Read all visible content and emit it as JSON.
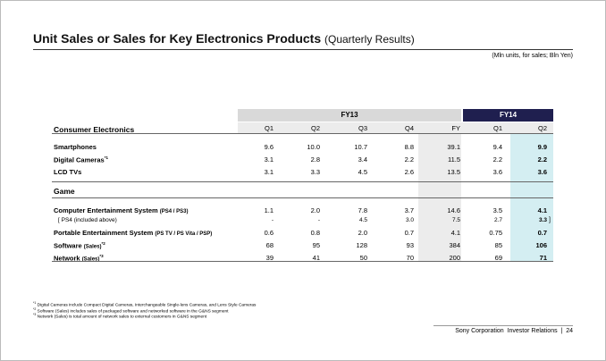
{
  "header": {
    "title": "Unit Sales or Sales for Key Electronics Products",
    "subtitle": "(Quarterly Results)",
    "units": "(Mln units, for sales; Bln Yen)"
  },
  "table": {
    "fiscal_years": [
      "FY13",
      "FY14"
    ],
    "columns": [
      "Q1",
      "Q2",
      "Q3",
      "Q4",
      "FY",
      "Q1",
      "Q2"
    ],
    "sections": [
      {
        "title": "Consumer Electronics",
        "rows": [
          {
            "label": "Smartphones",
            "cells": [
              "9.6",
              "10.0",
              "10.7",
              "8.8",
              "39.1",
              "9.4",
              "9.9"
            ]
          },
          {
            "label": "Digital Cameras",
            "note": "*1",
            "cells": [
              "3.1",
              "2.8",
              "3.4",
              "2.2",
              "11.5",
              "2.2",
              "2.2"
            ]
          },
          {
            "label": "LCD TVs",
            "cells": [
              "3.1",
              "3.3",
              "4.5",
              "2.6",
              "13.5",
              "3.6",
              "3.6"
            ]
          }
        ]
      },
      {
        "title": "Game",
        "rows": [
          {
            "label": "Computer Entertainment System",
            "qualifier": "(PS4 / PS3)",
            "cells": [
              "1.1",
              "2.0",
              "7.8",
              "3.7",
              "14.6",
              "3.5",
              "4.1"
            ]
          },
          {
            "label": "[ PS4 (included above)",
            "close": "]",
            "cells": [
              "-",
              "-",
              "4.5",
              "3.0",
              "7.5",
              "2.7",
              "3.3"
            ]
          },
          {
            "label": "Portable Entertainment System",
            "qualifier": "(PS TV / PS Vita / PSP)",
            "cells": [
              "0.6",
              "0.8",
              "2.0",
              "0.7",
              "4.1",
              "0.75",
              "0.7"
            ]
          },
          {
            "label": "Software",
            "qualifier": "(Sales)",
            "note": "*2",
            "cells": [
              "68",
              "95",
              "128",
              "93",
              "384",
              "85",
              "106"
            ]
          },
          {
            "label": "Network",
            "qualifier": "(Sales)",
            "note": "*3",
            "cells": [
              "39",
              "41",
              "50",
              "70",
              "200",
              "69",
              "71"
            ]
          }
        ]
      }
    ]
  },
  "footnotes": [
    {
      "mark": "*1",
      "text": "Digital Cameras include Compact Digital Cameras, Interchangeable Single-lens Cameras, and Lens Style Cameras"
    },
    {
      "mark": "*2",
      "text": "Software (Sales) includes sales of packaged software and networked software in the G&NS segment"
    },
    {
      "mark": "*3",
      "text": "Network (Sales) is total amount of network sales to external customers in G&NS segment"
    }
  ],
  "footer": {
    "company": "Sony Corporation",
    "department": "Investor Relations",
    "page": "24"
  }
}
